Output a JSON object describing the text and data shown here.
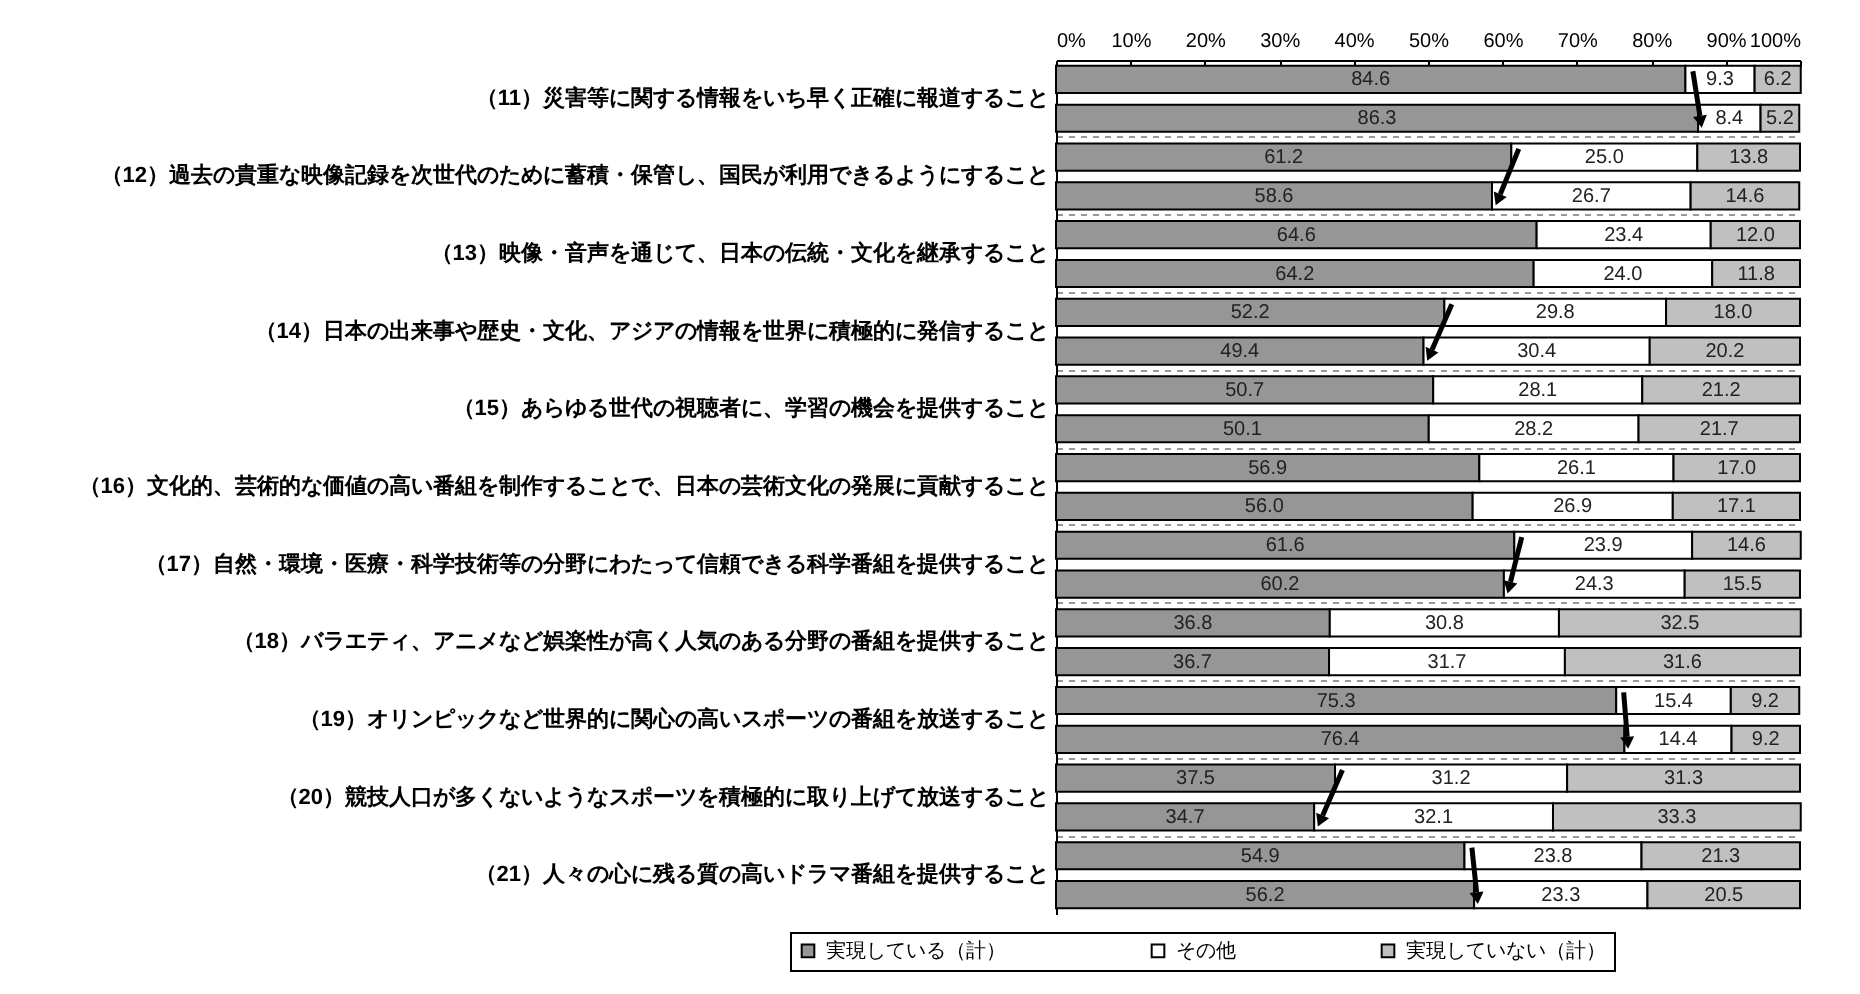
{
  "chart_data": {
    "type": "bar",
    "orientation": "horizontal",
    "stacked": true,
    "legend": "bottom",
    "grid": "y",
    "categories": [
      "（11）災害等に関する情報をいち早く正確に報道すること",
      null,
      "（12）過去の貴重な映像記録を次世代のために蓄積・保管し、国民が利用できるようにすること",
      null,
      "（13）映像・音声を通じて、日本の伝統・文化を継承すること",
      null,
      "（14）日本の出来事や歴史・文化、アジアの情報を世界に積極的に発信すること",
      null,
      "（15）あらゆる世代の視聴者に、学習の機会を提供すること",
      null,
      "（16）文化的、芸術的な価値の高い番組を制作することで、日本の芸術文化の発展に貢献すること",
      null,
      "（17）自然・環境・医療・科学技術等の分野にわたって信頼できる科学番組を提供すること",
      null,
      "（18）バラエティ、アニメなど娯楽性が高く人気のある分野の番組を提供すること",
      null,
      "（19）オリンピックなど世界的に関心の高いスポーツの番組を放送すること",
      null,
      "（20）競技人口が多くないようなスポーツを積極的に取り上げて放送すること",
      null,
      "（21）人々の心に残る質の高いドラマ番組を提供すること",
      null
    ],
    "series": [
      {
        "name": "実現している（計）",
        "color": "#969696",
        "values": [
          84.6,
          86.3,
          61.2,
          58.6,
          64.6,
          64.2,
          52.2,
          49.4,
          50.7,
          50.1,
          56.9,
          56.0,
          61.6,
          60.2,
          36.8,
          36.7,
          75.3,
          76.4,
          37.5,
          34.7,
          54.9,
          56.2
        ],
        "value_labels": [
          "84.6",
          "86.3",
          "61.2",
          "58.6",
          "64.6",
          "64.2",
          "52.2",
          "49.4",
          "50.7",
          "50.1",
          "56.9",
          "56.0",
          "61.6",
          "60.2",
          "36.8",
          "36.7",
          "75.3",
          "76.4",
          "37.5",
          "34.7",
          "54.9",
          "56.2"
        ]
      },
      {
        "name": "その他",
        "color": "#ffffff",
        "values": [
          9.3,
          8.4,
          25.0,
          26.7,
          23.4,
          24.0,
          29.8,
          30.4,
          28.1,
          28.2,
          26.1,
          26.9,
          23.9,
          24.3,
          30.8,
          31.7,
          15.4,
          14.4,
          31.2,
          32.1,
          23.8,
          23.3
        ],
        "value_labels": [
          "9.3",
          "8.4",
          "25.0",
          "26.7",
          "23.4",
          "24.0",
          "29.8",
          "30.4",
          "28.1",
          "28.2",
          "26.1",
          "26.9",
          "23.9",
          "24.3",
          "30.8",
          "31.7",
          "15.4",
          "14.4",
          "31.2",
          "32.1",
          "23.8",
          "23.3"
        ]
      },
      {
        "name": "実現していない（計）",
        "color": "#c0c0c0",
        "values": [
          6.2,
          5.2,
          13.8,
          14.6,
          12.0,
          11.8,
          18.0,
          20.2,
          21.2,
          21.7,
          17.0,
          17.1,
          14.6,
          15.5,
          32.5,
          31.6,
          9.2,
          9.2,
          31.3,
          33.3,
          21.3,
          20.5
        ],
        "value_labels": [
          "6.2",
          "5.2",
          "13.8",
          "14.6",
          "12.0",
          "11.8",
          "18.0",
          "20.2",
          "21.2",
          "21.7",
          "17.0",
          "17.1",
          "14.6",
          "15.5",
          "32.5",
          "31.6",
          "9.2",
          "9.2",
          "31.3",
          "33.3",
          "21.3",
          "20.5"
        ]
      }
    ],
    "xlim": [
      0,
      100
    ],
    "xticks": [
      {
        "value": 0,
        "label": "0%"
      },
      {
        "value": 10,
        "label": "10%"
      },
      {
        "value": 20,
        "label": "20%"
      },
      {
        "value": 30,
        "label": "30%"
      },
      {
        "value": 40,
        "label": "40%"
      },
      {
        "value": 50,
        "label": "50%"
      },
      {
        "value": 60,
        "label": "60%"
      },
      {
        "value": 70,
        "label": "70%"
      },
      {
        "value": 80,
        "label": "80%"
      },
      {
        "value": 90,
        "label": "90%"
      },
      {
        "value": 100,
        "label": "100%"
      }
    ]
  }
}
